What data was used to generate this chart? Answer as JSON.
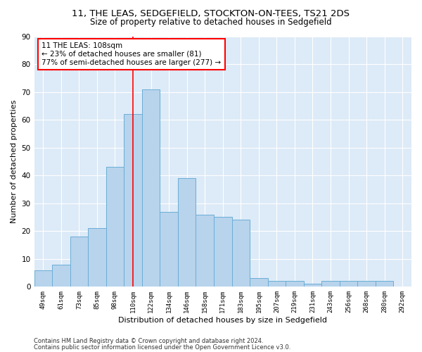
{
  "title1": "11, THE LEAS, SEDGEFIELD, STOCKTON-ON-TEES, TS21 2DS",
  "title2": "Size of property relative to detached houses in Sedgefield",
  "xlabel": "Distribution of detached houses by size in Sedgefield",
  "ylabel": "Number of detached properties",
  "categories": [
    "49sqm",
    "61sqm",
    "73sqm",
    "85sqm",
    "98sqm",
    "110sqm",
    "122sqm",
    "134sqm",
    "146sqm",
    "158sqm",
    "171sqm",
    "183sqm",
    "195sqm",
    "207sqm",
    "219sqm",
    "231sqm",
    "243sqm",
    "256sqm",
    "268sqm",
    "280sqm",
    "292sqm"
  ],
  "values": [
    6,
    8,
    18,
    21,
    43,
    62,
    71,
    27,
    39,
    26,
    25,
    24,
    3,
    2,
    2,
    1,
    2,
    2,
    2,
    2,
    0
  ],
  "bar_color": "#b8d3ec",
  "bar_edge_color": "#6aaed6",
  "property_line_x": 5.0,
  "annotation_text": "11 THE LEAS: 108sqm\n← 23% of detached houses are smaller (81)\n77% of semi-detached houses are larger (277) →",
  "annotation_box_color": "white",
  "annotation_box_edge_color": "red",
  "vline_color": "red",
  "ylim": [
    0,
    90
  ],
  "yticks": [
    0,
    10,
    20,
    30,
    40,
    50,
    60,
    70,
    80,
    90
  ],
  "footnote1": "Contains HM Land Registry data © Crown copyright and database right 2024.",
  "footnote2": "Contains public sector information licensed under the Open Government Licence v3.0.",
  "background_color": "#ddeaf7",
  "grid_color": "white",
  "title1_fontsize": 9.5,
  "title2_fontsize": 8.5,
  "xlabel_fontsize": 8,
  "ylabel_fontsize": 8,
  "footnote_fontsize": 6,
  "annot_fontsize": 7.5
}
